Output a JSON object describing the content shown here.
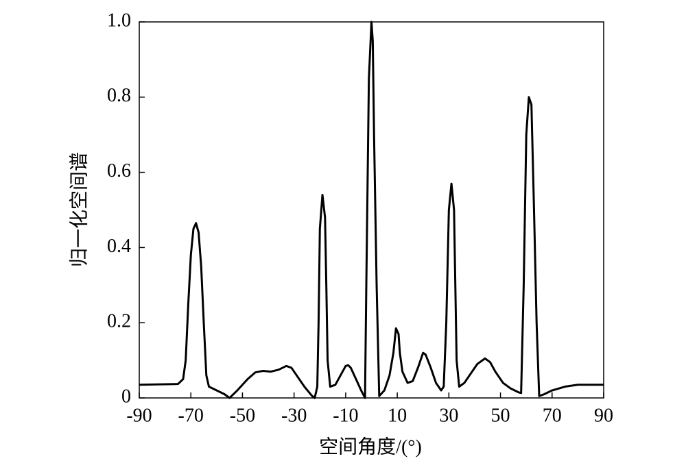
{
  "chart_data": {
    "type": "line",
    "xlabel": "空间角度/(°)",
    "ylabel": "归一化空间谱",
    "xlim": [
      -90,
      90
    ],
    "ylim": [
      0,
      1
    ],
    "xticks": [
      -90,
      -70,
      -50,
      -30,
      -10,
      10,
      30,
      50,
      70,
      90
    ],
    "yticks": [
      0,
      0.2,
      0.4,
      0.6,
      0.8,
      {
        "value": 1,
        "label": "1.0"
      }
    ],
    "x": [
      -90,
      -75,
      -73,
      -72,
      -71,
      -70,
      -69,
      -68,
      -67,
      -66,
      -65,
      -64,
      -63,
      -60,
      -57,
      -55,
      -52,
      -48,
      -45,
      -42,
      -39,
      -36,
      -33,
      -31,
      -29,
      -26,
      -23,
      -22,
      -21,
      -20.5,
      -20,
      -19,
      -18,
      -17.5,
      -17,
      -16,
      -14,
      -12,
      -10,
      -9,
      -8,
      -6,
      -4,
      -2.5,
      -2,
      -1,
      0,
      0.5,
      1,
      2,
      3,
      5,
      7,
      8.5,
      9.5,
      10.5,
      11,
      12,
      14,
      16,
      18,
      20,
      21,
      23,
      25,
      27,
      28,
      29,
      30,
      31,
      32,
      32.5,
      33,
      34,
      36,
      38,
      41,
      44,
      46,
      48,
      51,
      54,
      57,
      58,
      59,
      60,
      61,
      62,
      63,
      64,
      65,
      67,
      70,
      75,
      80,
      90
    ],
    "series": [
      {
        "color": "#000000",
        "values": [
          0.035,
          0.037,
          0.05,
          0.1,
          0.25,
          0.38,
          0.45,
          0.465,
          0.44,
          0.35,
          0.2,
          0.06,
          0.03,
          0.02,
          0.01,
          0.0,
          0.02,
          0.05,
          0.068,
          0.072,
          0.07,
          0.075,
          0.085,
          0.08,
          0.06,
          0.03,
          0.005,
          0.0,
          0.03,
          0.2,
          0.45,
          0.54,
          0.48,
          0.3,
          0.1,
          0.03,
          0.035,
          0.06,
          0.085,
          0.087,
          0.08,
          0.05,
          0.02,
          0.0,
          0.3,
          0.85,
          1.0,
          0.95,
          0.7,
          0.3,
          0.005,
          0.02,
          0.06,
          0.12,
          0.185,
          0.17,
          0.12,
          0.07,
          0.04,
          0.045,
          0.08,
          0.12,
          0.115,
          0.08,
          0.04,
          0.02,
          0.03,
          0.2,
          0.5,
          0.57,
          0.5,
          0.3,
          0.1,
          0.03,
          0.04,
          0.06,
          0.09,
          0.105,
          0.095,
          0.07,
          0.04,
          0.025,
          0.015,
          0.013,
          0.3,
          0.7,
          0.8,
          0.78,
          0.5,
          0.2,
          0.005,
          0.01,
          0.02,
          0.03,
          0.035,
          0.035
        ]
      }
    ]
  }
}
